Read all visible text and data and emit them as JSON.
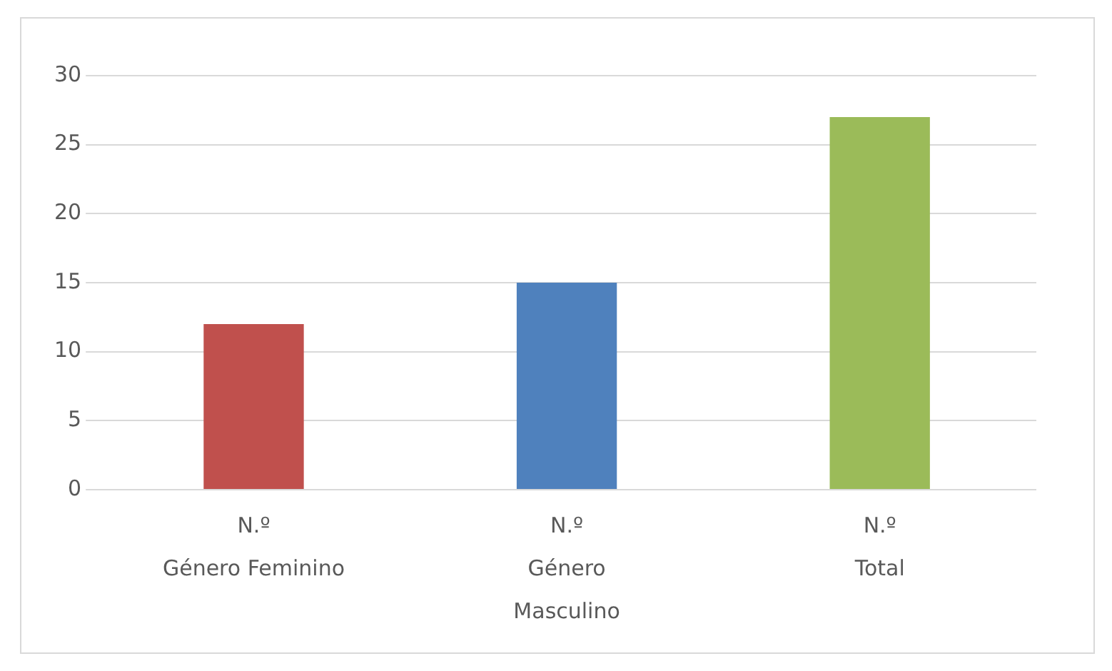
{
  "chart_data": {
    "type": "bar",
    "categories": [
      "N.º\nGénero Feminino",
      "N.º\nGénero\nMasculino",
      "N.º\nTotal"
    ],
    "values": [
      12,
      15,
      27
    ],
    "colors": [
      "#c0504d",
      "#4f81bd",
      "#9bbb59"
    ],
    "ylim": [
      0,
      30
    ],
    "yticks": [
      0,
      5,
      10,
      15,
      20,
      25,
      30
    ],
    "grid": "y",
    "legend": false
  }
}
